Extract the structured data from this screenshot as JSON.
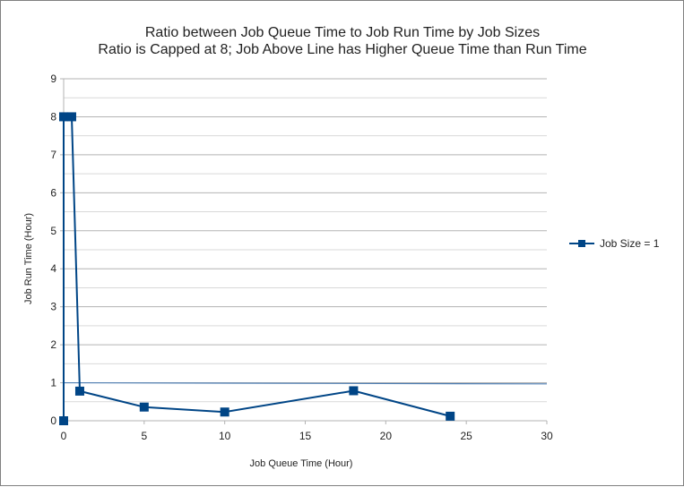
{
  "chart_data": {
    "type": "scatter",
    "title": "Ratio between Job Queue Time to Job Run Time by Job Sizes",
    "subtitle": "Ratio is Capped at 8; Job Above Line has Higher Queue Time than Run Time",
    "xlabel": "Job Queue Time (Hour)",
    "ylabel": "Job Run Time (Hour)",
    "xlim": [
      0,
      30
    ],
    "ylim": [
      0,
      9
    ],
    "x_ticks": [
      0,
      5,
      10,
      15,
      20,
      25,
      30
    ],
    "y_ticks": [
      0,
      1,
      2,
      3,
      4,
      5,
      6,
      7,
      8,
      9
    ],
    "grid": true,
    "legend_position": "right",
    "series": [
      {
        "name": "Job Size =  1",
        "color": "#004586",
        "marker": "square",
        "points": [
          {
            "x": 0,
            "y": 0
          },
          {
            "x": 0,
            "y": 8
          },
          {
            "x": 0.5,
            "y": 8
          },
          {
            "x": 1,
            "y": 0.78
          },
          {
            "x": 5,
            "y": 0.36
          },
          {
            "x": 10,
            "y": 0.23
          },
          {
            "x": 18,
            "y": 0.79
          },
          {
            "x": 24,
            "y": 0.12
          }
        ]
      }
    ],
    "reference_line": {
      "x": [
        0,
        30
      ],
      "y": [
        1,
        0.97
      ],
      "color": "#4f7fb4"
    }
  }
}
